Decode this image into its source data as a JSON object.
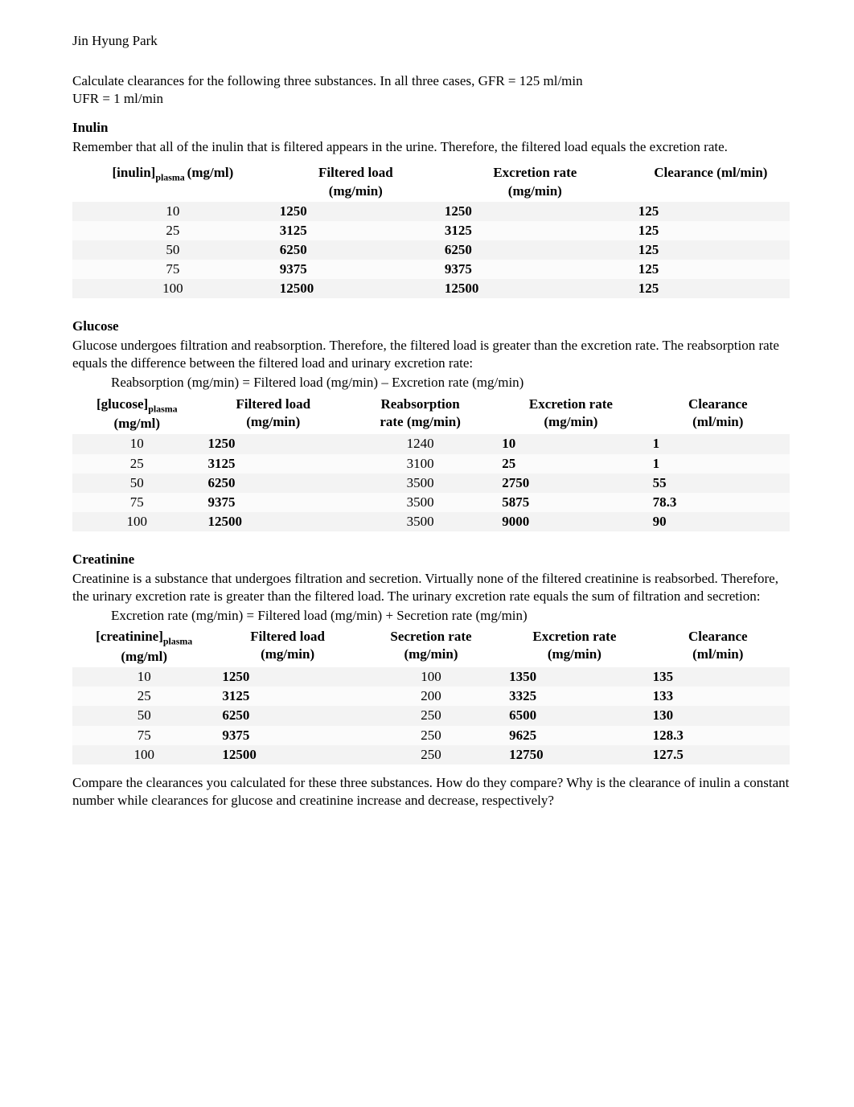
{
  "author": "Jin Hyung Park",
  "intro_line1": "Calculate clearances for the following three substances. In all three cases, GFR = 125 ml/min",
  "intro_line2": "UFR = 1 ml/min",
  "inulin": {
    "title": "Inulin",
    "desc": "Remember that all of the inulin that is filtered appears in the urine. Therefore, the filtered load equals the excretion rate.",
    "header_conc_pre": "[inulin]",
    "header_conc_sub": "plasma ",
    "header_conc_post": "(mg/ml)",
    "header_fl1": "Filtered load",
    "header_fl2": "(mg/min)",
    "header_er1": "Excretion rate",
    "header_er2": "(mg/min)",
    "header_cl": "Clearance (ml/min)",
    "rows": [
      {
        "c": "10",
        "fl": "1250",
        "er": "1250",
        "cl": "125"
      },
      {
        "c": "25",
        "fl": "3125",
        "er": "3125",
        "cl": "125"
      },
      {
        "c": "50",
        "fl": "6250",
        "er": "6250",
        "cl": "125"
      },
      {
        "c": "75",
        "fl": "9375",
        "er": "9375",
        "cl": "125"
      },
      {
        "c": "100",
        "fl": "12500",
        "er": "12500",
        "cl": "125"
      }
    ]
  },
  "glucose": {
    "title": "Glucose",
    "desc": "Glucose undergoes filtration and reabsorption. Therefore, the filtered load is greater than the excretion rate. The reabsorption rate equals the difference between the filtered load and urinary excretion rate:",
    "formula": "Reabsorption (mg/min) = Filtered load (mg/min) – Excretion rate (mg/min)",
    "header_conc_pre": "[glucose]",
    "header_conc_sub": "plasma",
    "header_conc_post": "(mg/ml)",
    "header_fl1": "Filtered load",
    "header_fl2": "(mg/min)",
    "header_re1": "Reabsorption",
    "header_re2": "rate (mg/min)",
    "header_er1": "Excretion rate",
    "header_er2": "(mg/min)",
    "header_cl1": "Clearance",
    "header_cl2": "(ml/min)",
    "rows": [
      {
        "c": "10",
        "fl": "1250",
        "re": "1240",
        "er": "10",
        "cl": "1"
      },
      {
        "c": "25",
        "fl": "3125",
        "re": "3100",
        "er": "25",
        "cl": "1"
      },
      {
        "c": "50",
        "fl": "6250",
        "re": "3500",
        "er": "2750",
        "cl": "55"
      },
      {
        "c": "75",
        "fl": "9375",
        "re": "3500",
        "er": "5875",
        "cl": "78.3"
      },
      {
        "c": "100",
        "fl": "12500",
        "re": "3500",
        "er": "9000",
        "cl": "90"
      }
    ]
  },
  "creatinine": {
    "title": "Creatinine",
    "desc": "Creatinine is a substance that undergoes filtration and secretion. Virtually none of the filtered creatinine is reabsorbed. Therefore, the urinary excretion rate is greater than the filtered load. The urinary excretion rate equals the sum of filtration and secretion:",
    "formula": "Excretion rate (mg/min) = Filtered load (mg/min) + Secretion rate (mg/min)",
    "header_conc_pre": "[creatinine]",
    "header_conc_sub": "plasma",
    "header_conc_post": "(mg/ml)",
    "header_fl1": "Filtered load",
    "header_fl2": "(mg/min)",
    "header_se1": "Secretion rate",
    "header_se2": "(mg/min)",
    "header_er1": "Excretion rate",
    "header_er2": "(mg/min)",
    "header_cl1": "Clearance",
    "header_cl2": "(ml/min)",
    "rows": [
      {
        "c": "10",
        "fl": "1250",
        "se": "100",
        "er": "1350",
        "cl": "135"
      },
      {
        "c": "25",
        "fl": "3125",
        "se": "200",
        "er": "3325",
        "cl": "133"
      },
      {
        "c": "50",
        "fl": "6250",
        "se": "250",
        "er": "6500",
        "cl": "130"
      },
      {
        "c": "75",
        "fl": "9375",
        "se": "250",
        "er": "9625",
        "cl": "128.3"
      },
      {
        "c": "100",
        "fl": "12500",
        "se": "250",
        "er": "12750",
        "cl": "127.5"
      }
    ]
  },
  "compare": "Compare the clearances you calculated for these three substances. How do they compare? Why is the clearance of inulin a constant number while clearances for glucose and creatinine increase and decrease, respectively?",
  "layout": {
    "inulin_col_widths": [
      "28%",
      "23%",
      "27%",
      "22%"
    ],
    "glucose_col_widths": [
      "18%",
      "20%",
      "21%",
      "21%",
      "20%"
    ],
    "creatinine_col_widths": [
      "20%",
      "20%",
      "20%",
      "20%",
      "20%"
    ]
  }
}
